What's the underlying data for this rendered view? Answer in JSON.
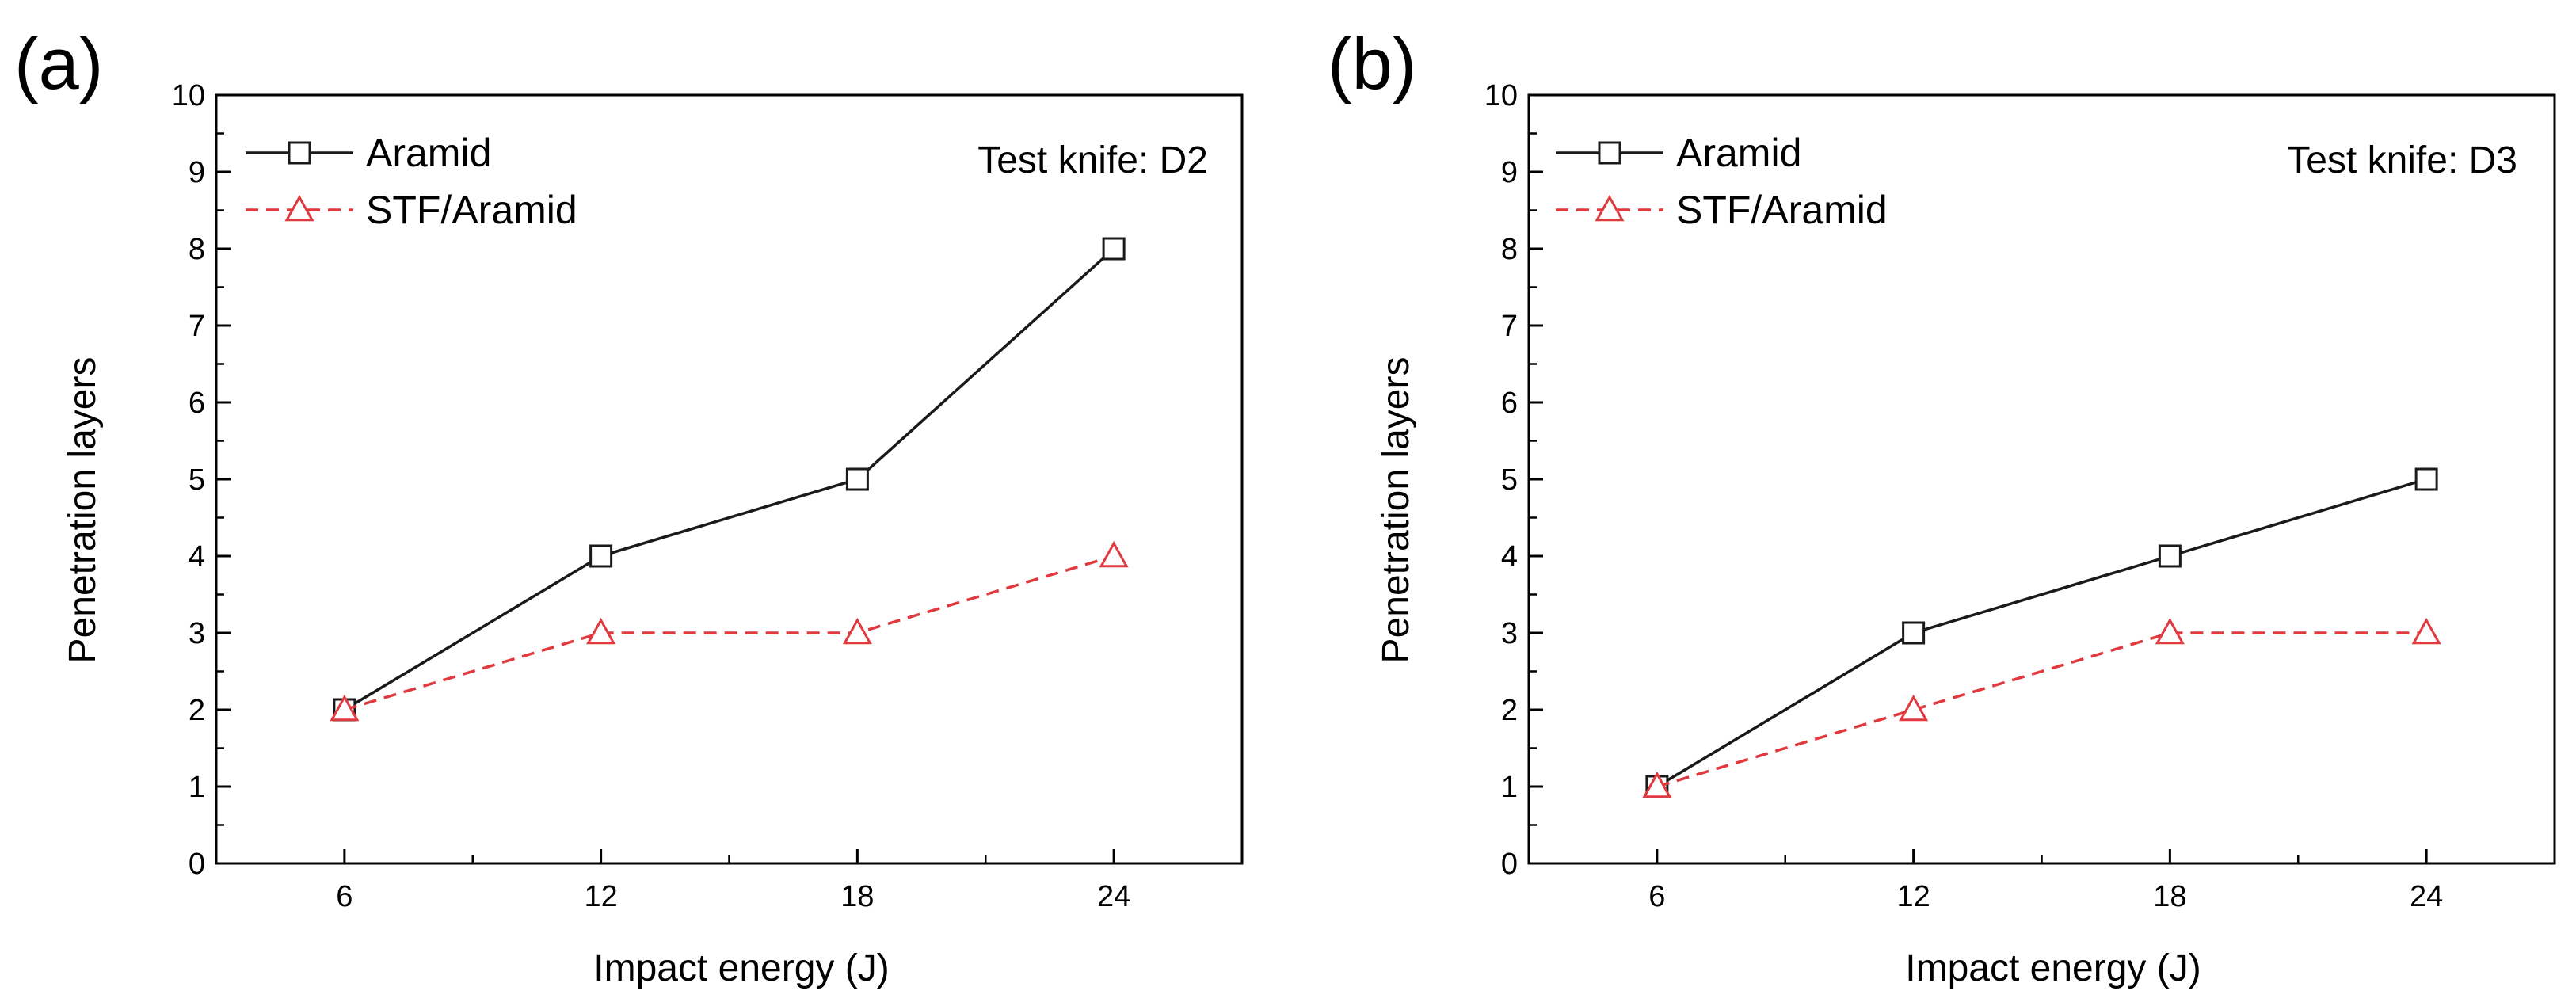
{
  "chart_data": [
    {
      "panel_label": "(a)",
      "type": "line",
      "x": [
        6,
        12,
        18,
        24
      ],
      "xticks": [
        "6",
        "12",
        "18",
        "24"
      ],
      "yticks": [
        "0",
        "1",
        "2",
        "3",
        "4",
        "5",
        "6",
        "7",
        "8",
        "9",
        "10"
      ],
      "xlim": [
        3,
        27
      ],
      "ylim": [
        0,
        10
      ],
      "xlabel": "Impact energy (J)",
      "ylabel": "Penetration layers",
      "annotation": "Test knife: D2",
      "legend_position": "top-left",
      "series": [
        {
          "name": "Aramid",
          "values": [
            2,
            4,
            5,
            8
          ],
          "color": "#1a1a1a",
          "marker": "square",
          "dash": "solid"
        },
        {
          "name": "STF/Aramid",
          "values": [
            2,
            3,
            3,
            4
          ],
          "color": "#e0393e",
          "marker": "triangle",
          "dash": "dashed"
        }
      ]
    },
    {
      "panel_label": "(b)",
      "type": "line",
      "x": [
        6,
        12,
        18,
        24
      ],
      "xticks": [
        "6",
        "12",
        "18",
        "24"
      ],
      "yticks": [
        "0",
        "1",
        "2",
        "3",
        "4",
        "5",
        "6",
        "7",
        "8",
        "9",
        "10"
      ],
      "xlim": [
        3,
        27
      ],
      "ylim": [
        0,
        10
      ],
      "xlabel": "Impact energy (J)",
      "ylabel": "Penetration layers",
      "annotation": "Test knife: D3",
      "legend_position": "top-left",
      "series": [
        {
          "name": "Aramid",
          "values": [
            1,
            3,
            4,
            5
          ],
          "color": "#1a1a1a",
          "marker": "square",
          "dash": "solid"
        },
        {
          "name": "STF/Aramid",
          "values": [
            1,
            2,
            3,
            3
          ],
          "color": "#e0393e",
          "marker": "triangle",
          "dash": "dashed"
        }
      ]
    }
  ]
}
